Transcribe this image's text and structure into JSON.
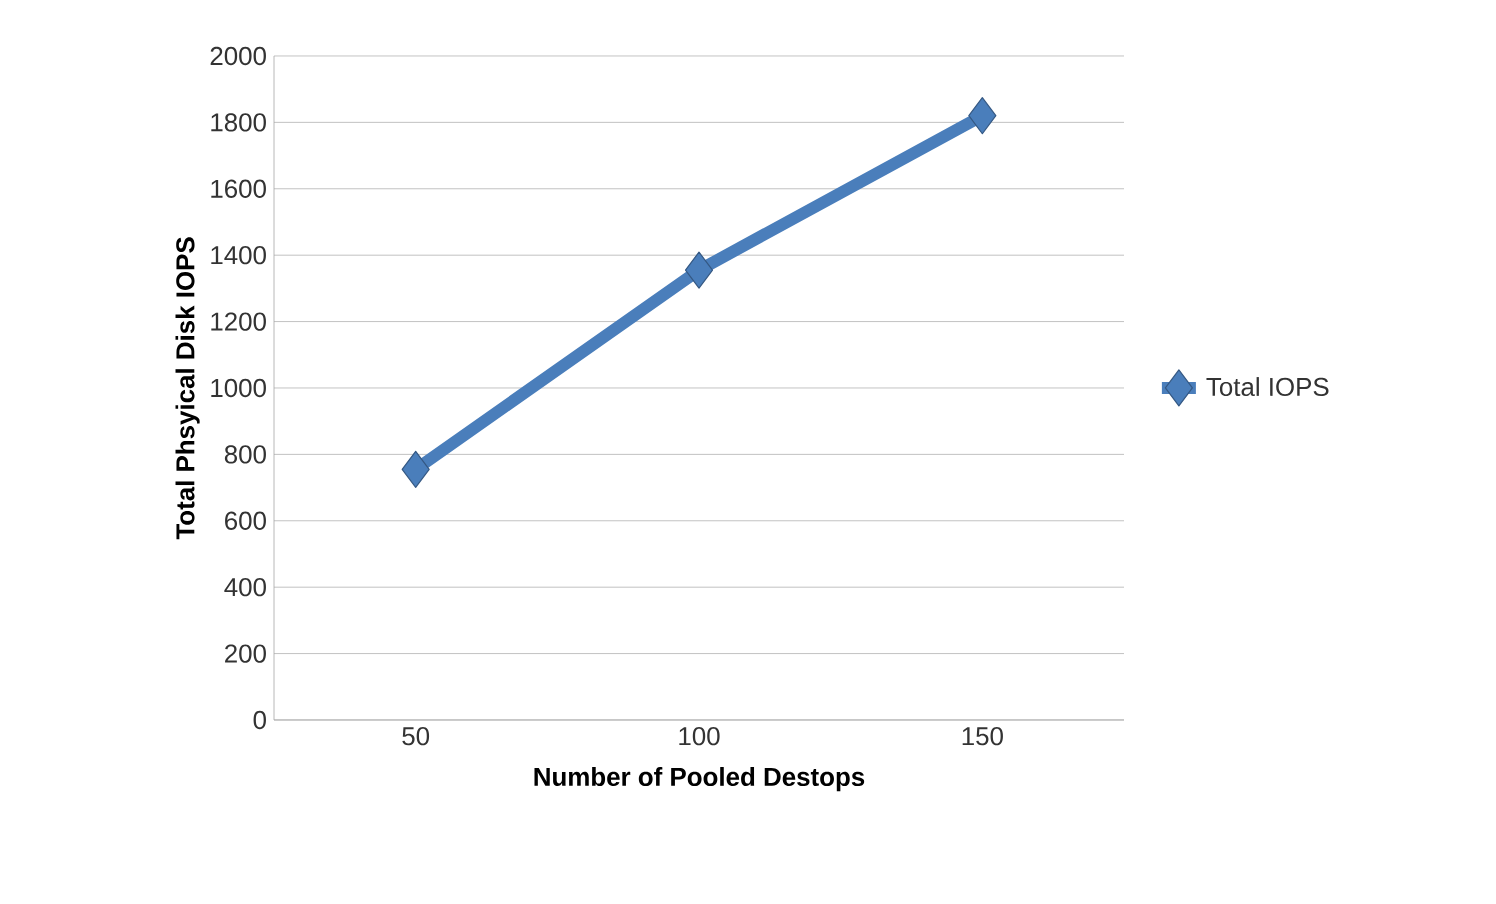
{
  "chart_data": {
    "type": "line",
    "xlabel": "Number of Pooled Destops",
    "ylabel": "Total Phsyical Disk IOPS",
    "categories": [
      "50",
      "100",
      "150"
    ],
    "series": [
      {
        "name": "Total IOPS",
        "color": "#4a7ebb",
        "values": [
          755,
          1355,
          1820
        ]
      }
    ],
    "ylim": [
      0,
      2000
    ],
    "yticks": [
      0,
      200,
      400,
      600,
      800,
      1000,
      1200,
      1400,
      1600,
      1800,
      2000
    ],
    "grid": "y",
    "legend": "right",
    "marker": "diamond",
    "line_style": "solid"
  }
}
